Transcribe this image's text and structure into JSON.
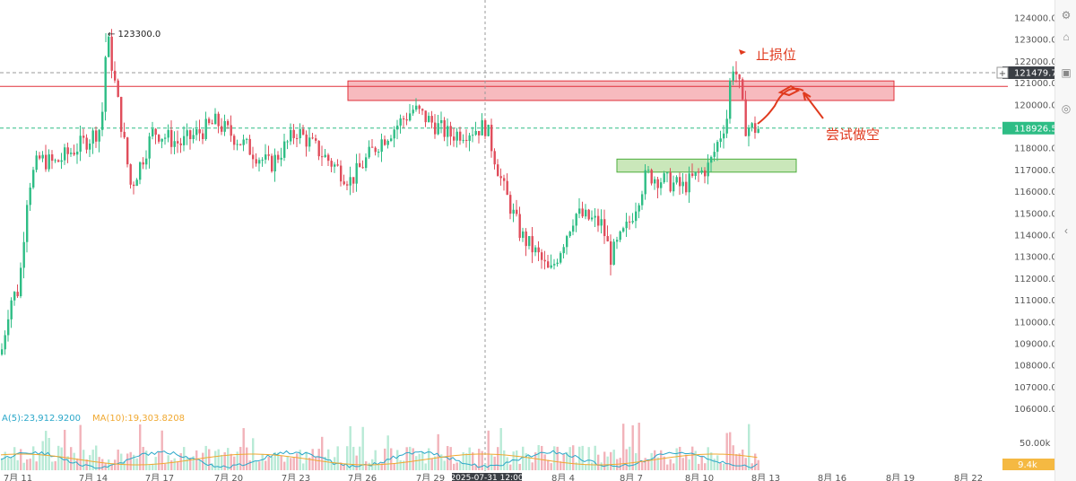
{
  "chart_data": {
    "type": "candlestick",
    "price_axis": {
      "ticks": [
        "124000.0",
        "123000.0",
        "122000.0",
        "121000.0",
        "120000.0",
        "119000.0",
        "118000.0",
        "117000.0",
        "116000.0",
        "115000.0",
        "114000.0",
        "113000.0",
        "112000.0",
        "111000.0",
        "110000.0",
        "109000.0",
        "108000.0",
        "107000.0",
        "106000.0"
      ],
      "ylim": [
        105500,
        124300
      ]
    },
    "date_axis": {
      "ticks": [
        "7月 11",
        "7月 14",
        "7月 17",
        "7月 20",
        "7月 23",
        "7月 26",
        "7月 29",
        "8月 1",
        "8月 4",
        "8月 7",
        "8月 10",
        "8月 13",
        "8月 16",
        "8月 19",
        "8月 22"
      ]
    },
    "crosshair_time_label": "2025-07-31 12:00",
    "price_markers": {
      "resistance_line": "121479.7",
      "current_price": "118926.5"
    },
    "peak": {
      "label": "123300.0",
      "value": 123300
    },
    "zones": [
      {
        "name": "resistance",
        "ymin": 120200,
        "ymax": 121100,
        "color": "#f4a3a8"
      },
      {
        "name": "support",
        "ymin": 116900,
        "ymax": 117500,
        "color": "#b8dfa3"
      }
    ],
    "annotations": {
      "stop_loss": "止损位",
      "try_short": "尝试做空"
    },
    "volume": {
      "ma5_label": "A(5):23,912.9200",
      "ma10_label": "MA(10):19,303.8208",
      "axis_tick": "50.00k",
      "last_value": "9.4k"
    }
  },
  "colors": {
    "up": "#2ebd85",
    "down": "#e04d5b",
    "annotation": "#e03a1e",
    "ma5": "#2aa7c9",
    "ma10": "#f0a830"
  }
}
